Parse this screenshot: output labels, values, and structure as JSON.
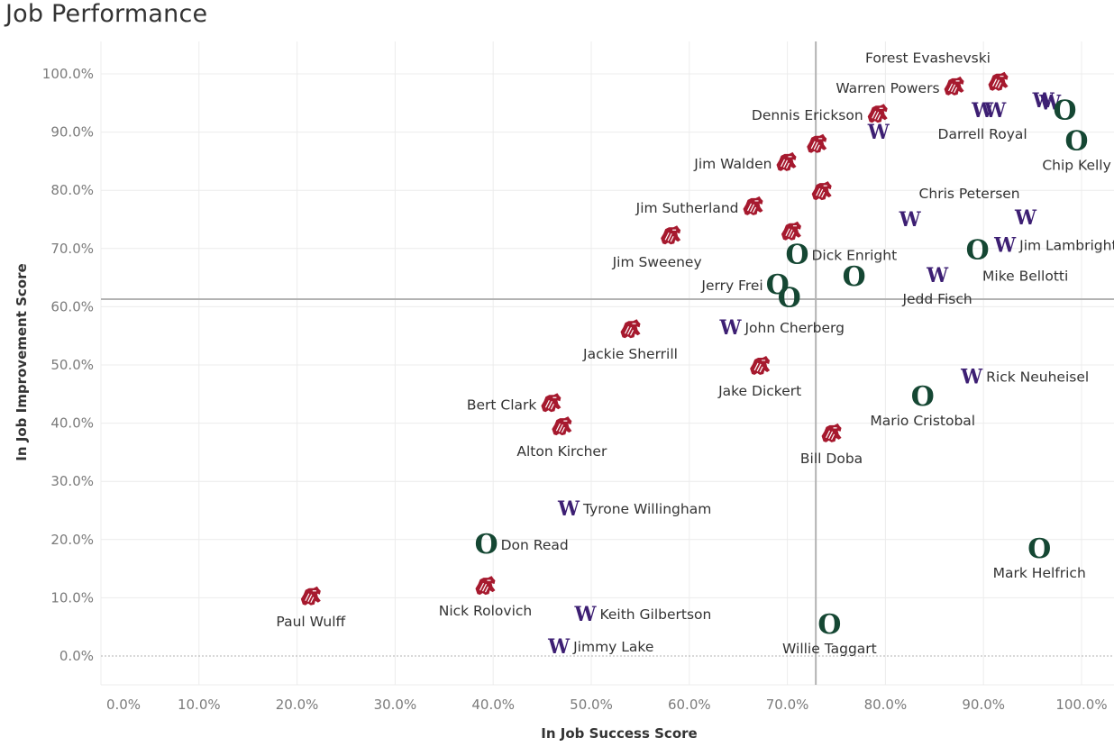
{
  "chart_data": {
    "type": "scatter",
    "title": "Job Performance",
    "xlabel": "In Job Success Score",
    "ylabel": "In Job Improvement Score",
    "xlim": [
      -2.3,
      103.3
    ],
    "ylim": [
      -5,
      105.5
    ],
    "x_ticks": [
      "0.0%",
      "10.0%",
      "20.0%",
      "30.0%",
      "40.0%",
      "50.0%",
      "60.0%",
      "70.0%",
      "80.0%",
      "90.0%",
      "100.0%"
    ],
    "y_ticks": [
      "0.0%",
      "10.0%",
      "20.0%",
      "30.0%",
      "40.0%",
      "50.0%",
      "60.0%",
      "70.0%",
      "80.0%",
      "90.0%",
      "100.0%"
    ],
    "grid": true,
    "reference_lines": {
      "x": 72.9,
      "y": 61.3
    },
    "teams": {
      "WSU": {
        "marker": "cougar-logo",
        "color": "#A6192E"
      },
      "UW": {
        "marker": "W-logo",
        "color": "#3D1F73"
      },
      "UO": {
        "marker": "O-logo",
        "color": "#154733"
      }
    },
    "points": [
      {
        "team": "WSU",
        "name": "Forest Evashevski",
        "x": 91.5,
        "y": 98.5,
        "label_pos": "above-left"
      },
      {
        "team": "WSU",
        "name": "Warren Powers",
        "x": 87.0,
        "y": 97.7,
        "label_pos": "left"
      },
      {
        "team": "WSU",
        "name": "Dennis Erickson",
        "x": 79.2,
        "y": 93.0,
        "label_pos": "left"
      },
      {
        "team": "UW",
        "name": "",
        "x": 79.3,
        "y": 90.1,
        "label_pos": "none"
      },
      {
        "team": "UW",
        "name": "Darrell Royal",
        "x": 89.9,
        "y": 93.8,
        "label_pos": "below"
      },
      {
        "team": "UW",
        "name": "",
        "x": 91.2,
        "y": 93.8,
        "label_pos": "none"
      },
      {
        "team": "UW",
        "name": "",
        "x": 96.1,
        "y": 95.5,
        "label_pos": "none"
      },
      {
        "team": "UW",
        "name": "",
        "x": 96.8,
        "y": 95.1,
        "label_pos": "none"
      },
      {
        "team": "UO",
        "name": "",
        "x": 98.3,
        "y": 93.7,
        "label_pos": "none"
      },
      {
        "team": "UO",
        "name": "Chip Kelly",
        "x": 99.5,
        "y": 88.5,
        "label_pos": "below"
      },
      {
        "team": "WSU",
        "name": "",
        "x": 73.0,
        "y": 87.8,
        "label_pos": "none"
      },
      {
        "team": "WSU",
        "name": "Jim Walden",
        "x": 69.9,
        "y": 84.7,
        "label_pos": "left"
      },
      {
        "team": "WSU",
        "name": "",
        "x": 73.5,
        "y": 79.7,
        "label_pos": "none"
      },
      {
        "team": "WSU",
        "name": "Jim Sutherland",
        "x": 66.5,
        "y": 77.1,
        "label_pos": "left"
      },
      {
        "team": "UW",
        "name": "Chris Petersen",
        "x": 82.5,
        "y": 75.1,
        "label_pos": "above-right"
      },
      {
        "team": "UW",
        "name": "",
        "x": 94.3,
        "y": 75.4,
        "label_pos": "none"
      },
      {
        "team": "WSU",
        "name": "",
        "x": 70.4,
        "y": 72.8,
        "label_pos": "none"
      },
      {
        "team": "WSU",
        "name": "Jim Sweeney",
        "x": 58.1,
        "y": 72.1,
        "label_pos": "below-left"
      },
      {
        "team": "UO",
        "name": "Dick Enright",
        "x": 71.0,
        "y": 69.0,
        "label_pos": "right"
      },
      {
        "team": "UO",
        "name": "Mike Bellotti",
        "x": 89.4,
        "y": 69.7,
        "label_pos": "below-right"
      },
      {
        "team": "UW",
        "name": "Jim Lambright",
        "x": 92.2,
        "y": 70.7,
        "label_pos": "right"
      },
      {
        "team": "UO",
        "name": "",
        "x": 76.8,
        "y": 65.2,
        "label_pos": "none"
      },
      {
        "team": "UW",
        "name": "Jedd Fisch",
        "x": 85.3,
        "y": 65.5,
        "label_pos": "below"
      },
      {
        "team": "UO",
        "name": "Jerry Frei",
        "x": 69.0,
        "y": 63.8,
        "label_pos": "left"
      },
      {
        "team": "UO",
        "name": "",
        "x": 70.2,
        "y": 61.5,
        "label_pos": "none"
      },
      {
        "team": "WSU",
        "name": "Jackie Sherrill",
        "x": 54.0,
        "y": 56.0,
        "label_pos": "below"
      },
      {
        "team": "UW",
        "name": "John Cherberg",
        "x": 64.2,
        "y": 56.5,
        "label_pos": "right"
      },
      {
        "team": "WSU",
        "name": "Jake Dickert",
        "x": 67.2,
        "y": 49.7,
        "label_pos": "below"
      },
      {
        "team": "UW",
        "name": "Rick Neuheisel",
        "x": 88.8,
        "y": 48.1,
        "label_pos": "right"
      },
      {
        "team": "UO",
        "name": "Mario Cristobal",
        "x": 83.8,
        "y": 44.6,
        "label_pos": "below"
      },
      {
        "team": "WSU",
        "name": "Bert Clark",
        "x": 45.9,
        "y": 43.3,
        "label_pos": "left"
      },
      {
        "team": "WSU",
        "name": "Alton Kircher",
        "x": 47.0,
        "y": 39.3,
        "label_pos": "below"
      },
      {
        "team": "WSU",
        "name": "Bill Doba",
        "x": 74.5,
        "y": 38.1,
        "label_pos": "below"
      },
      {
        "team": "UW",
        "name": "Tyrone Willingham",
        "x": 47.7,
        "y": 25.4,
        "label_pos": "right"
      },
      {
        "team": "UO",
        "name": "Don Read",
        "x": 39.3,
        "y": 19.2,
        "label_pos": "right"
      },
      {
        "team": "UO",
        "name": "Mark Helfrich",
        "x": 95.7,
        "y": 18.4,
        "label_pos": "below"
      },
      {
        "team": "WSU",
        "name": "Nick Rolovich",
        "x": 39.2,
        "y": 11.9,
        "label_pos": "below"
      },
      {
        "team": "WSU",
        "name": "Paul Wulff",
        "x": 21.4,
        "y": 10.1,
        "label_pos": "below"
      },
      {
        "team": "UW",
        "name": "Keith Gilbertson",
        "x": 49.4,
        "y": 7.3,
        "label_pos": "right"
      },
      {
        "team": "UO",
        "name": "Willie Taggart",
        "x": 74.3,
        "y": 5.4,
        "label_pos": "below"
      },
      {
        "team": "UW",
        "name": "Jimmy Lake",
        "x": 46.7,
        "y": 1.7,
        "label_pos": "right"
      }
    ]
  }
}
